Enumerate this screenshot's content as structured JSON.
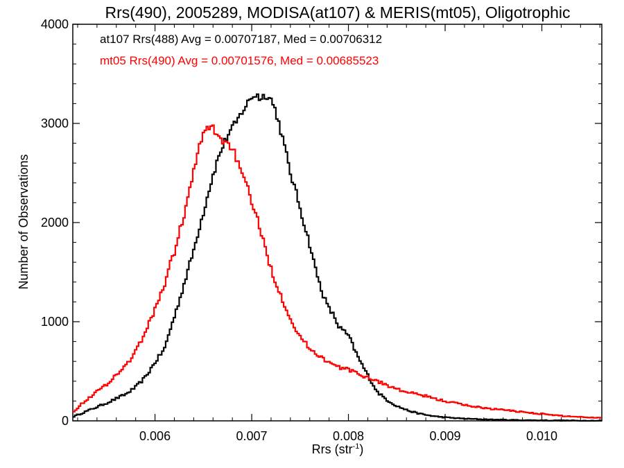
{
  "chart_data": {
    "type": "line",
    "style": "histogram-step",
    "title": "Rrs(490), 2005289, MODISA(at107) & MERIS(mt05), Oligotrophic",
    "xlabel_main": "Rrs (str",
    "xlabel_sup": "-1",
    "xlabel_close": ")",
    "ylabel": "Number of Observations",
    "xlim": [
      0.00515,
      0.01062
    ],
    "ylim": [
      0,
      4000
    ],
    "grid": false,
    "x_ticks": [
      0.006,
      0.007,
      0.008,
      0.009,
      0.01
    ],
    "x_tick_labels": [
      "0.006",
      "0.007",
      "0.008",
      "0.009",
      "0.010"
    ],
    "y_ticks": [
      0,
      1000,
      2000,
      3000,
      4000
    ],
    "y_tick_labels": [
      "0",
      "1000",
      "2000",
      "3000",
      "4000"
    ],
    "annotations": [
      {
        "text": "at107 Rrs(488) Avg = 0.00707187, Med = 0.00706312",
        "color": "#000000"
      },
      {
        "text": "mt05 Rrs(490) Avg = 0.00701576, Med = 0.00685523",
        "color": "#ff0000"
      }
    ],
    "series": [
      {
        "name": "at107 Rrs(488)",
        "color": "#000000",
        "x": [
          0.00515,
          0.0053,
          0.0055,
          0.0057,
          0.0058,
          0.0059,
          0.006,
          0.0061,
          0.00615,
          0.0062,
          0.00625,
          0.0063,
          0.00635,
          0.0064,
          0.00645,
          0.0065,
          0.00655,
          0.0066,
          0.00665,
          0.0067,
          0.00675,
          0.0068,
          0.00685,
          0.0069,
          0.00695,
          0.007,
          0.00705,
          0.0071,
          0.00715,
          0.0072,
          0.00725,
          0.0073,
          0.00735,
          0.0074,
          0.00745,
          0.0075,
          0.00755,
          0.0076,
          0.00765,
          0.0077,
          0.00775,
          0.0078,
          0.00785,
          0.0079,
          0.008,
          0.0081,
          0.0082,
          0.0083,
          0.0084,
          0.0085,
          0.0086,
          0.0087,
          0.0088,
          0.0089,
          0.009,
          0.0092,
          0.0094,
          0.0096,
          0.0098,
          0.01,
          0.0102,
          0.0104,
          0.01062
        ],
        "y": [
          40,
          100,
          180,
          270,
          340,
          440,
          590,
          730,
          900,
          1050,
          1210,
          1380,
          1550,
          1720,
          1920,
          2100,
          2300,
          2480,
          2640,
          2770,
          2880,
          2950,
          3020,
          3120,
          3190,
          3270,
          3290,
          3250,
          3300,
          3240,
          3120,
          2930,
          2720,
          2500,
          2330,
          2150,
          1960,
          1780,
          1570,
          1390,
          1240,
          1130,
          1060,
          950,
          860,
          640,
          460,
          290,
          210,
          150,
          110,
          80,
          60,
          45,
          35,
          22,
          15,
          10,
          7,
          5,
          3,
          2,
          1
        ]
      },
      {
        "name": "mt05 Rrs(490)",
        "color": "#ff0000",
        "x": [
          0.00515,
          0.0053,
          0.0055,
          0.0057,
          0.0058,
          0.0059,
          0.006,
          0.0061,
          0.00615,
          0.0062,
          0.00625,
          0.0063,
          0.00635,
          0.0064,
          0.00645,
          0.0065,
          0.00655,
          0.0066,
          0.00665,
          0.0067,
          0.00675,
          0.0068,
          0.00685,
          0.0069,
          0.00695,
          0.007,
          0.00705,
          0.0071,
          0.00715,
          0.0072,
          0.00725,
          0.0073,
          0.00735,
          0.0074,
          0.00745,
          0.0075,
          0.00755,
          0.0076,
          0.00765,
          0.0077,
          0.00775,
          0.0078,
          0.00785,
          0.0079,
          0.008,
          0.0081,
          0.0082,
          0.0083,
          0.0084,
          0.0085,
          0.0086,
          0.0087,
          0.0088,
          0.0089,
          0.009,
          0.0092,
          0.0094,
          0.0096,
          0.0098,
          0.01,
          0.0102,
          0.0104,
          0.01062
        ],
        "y": [
          90,
          220,
          370,
          560,
          700,
          890,
          1130,
          1380,
          1560,
          1700,
          1900,
          2080,
          2280,
          2520,
          2720,
          2900,
          2960,
          2950,
          2890,
          2820,
          2800,
          2760,
          2620,
          2470,
          2360,
          2220,
          2060,
          1880,
          1700,
          1540,
          1390,
          1270,
          1150,
          1040,
          930,
          850,
          790,
          730,
          690,
          660,
          620,
          590,
          560,
          540,
          520,
          470,
          440,
          400,
          360,
          320,
          290,
          270,
          250,
          220,
          200,
          160,
          130,
          110,
          90,
          70,
          50,
          40,
          30
        ]
      }
    ]
  }
}
